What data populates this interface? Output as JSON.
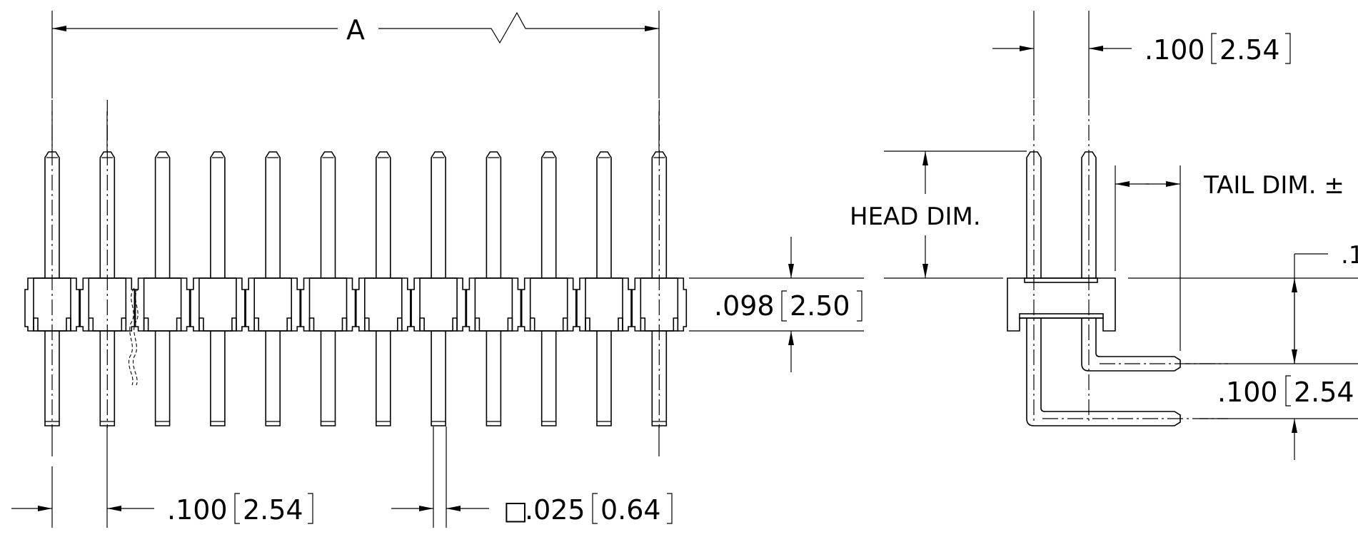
{
  "drawing": {
    "dim_a": "A",
    "pitch_top": ".100",
    "pitch_top_mm": "2.54",
    "head_dim": "HEAD DIM.",
    "tail_dim": "TAIL DIM. ±",
    "row_label_partial": ".1",
    "body_height": ".098",
    "body_height_mm": "2.50",
    "row_pitch": ".100",
    "row_pitch_mm": "2.54",
    "pitch_bottom": ".100",
    "pitch_bottom_mm": "2.54",
    "post_size_prefix": "□",
    "post_size": ".025",
    "post_size_mm": "0.64",
    "pin_count": 12
  }
}
